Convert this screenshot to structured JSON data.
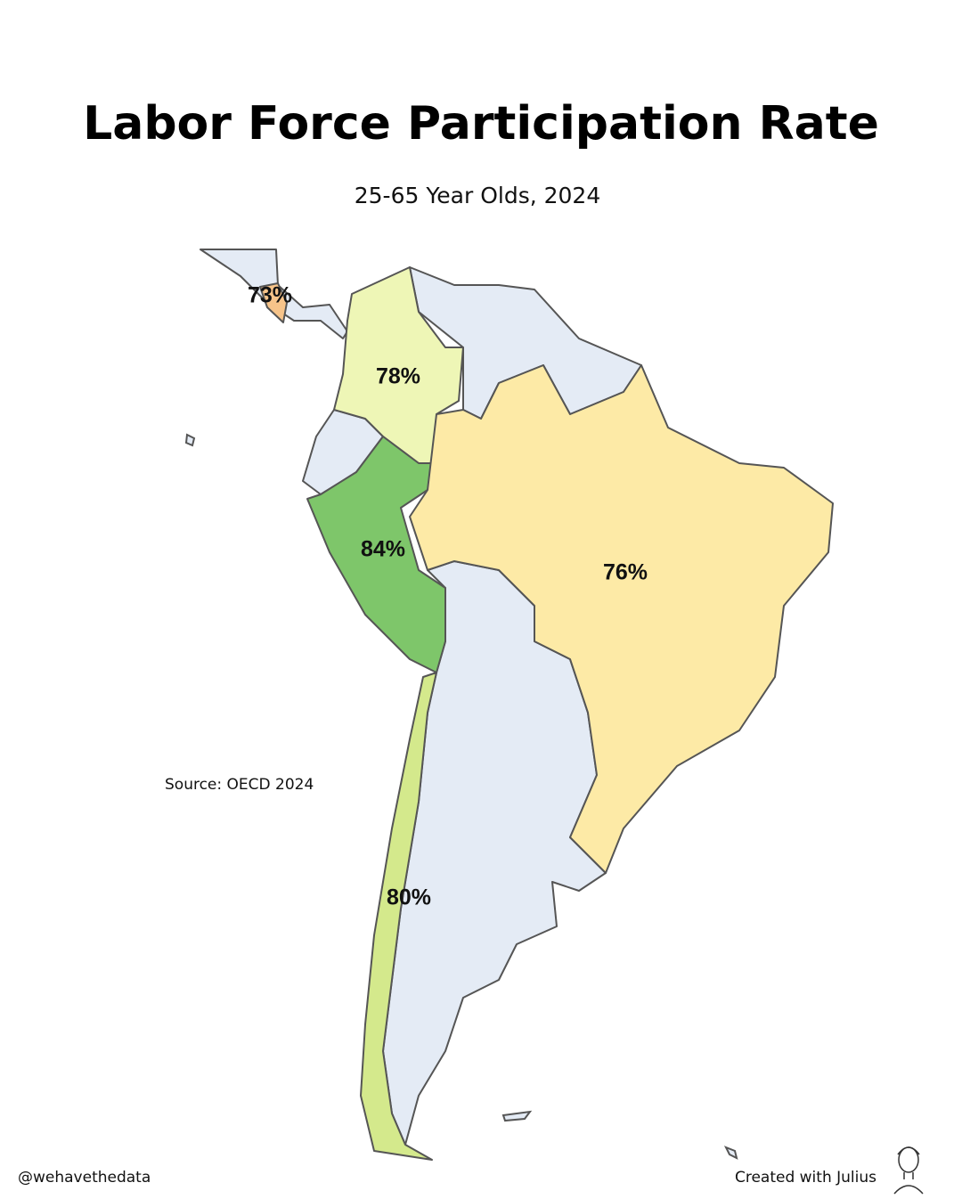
{
  "header": {
    "title": "Labor Force Participation Rate",
    "subtitle": "25-65 Year Olds, 2024"
  },
  "map": {
    "regions": [
      {
        "value": 73,
        "label": "73%",
        "color": "#f7c48a"
      },
      {
        "value": 78,
        "label": "78%",
        "color": "#eef6b6"
      },
      {
        "value": 84,
        "label": "84%",
        "color": "#7ec66a"
      },
      {
        "value": 76,
        "label": "76%",
        "color": "#fdeaa6"
      },
      {
        "value": 80,
        "label": "80%",
        "color": "#d4e98c"
      }
    ]
  },
  "source": "Source: OECD 2024",
  "footer": {
    "handle": "@wehavethedata",
    "credit": "Created with Julius"
  }
}
